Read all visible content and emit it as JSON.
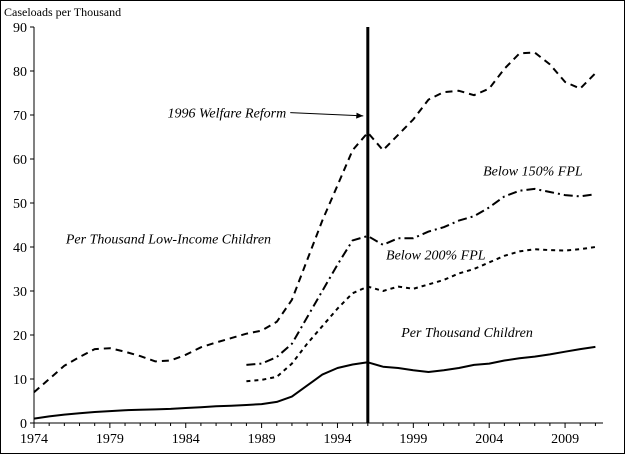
{
  "chart_data": {
    "type": "line",
    "title": "",
    "ylabel": "Caseloads per Thousand",
    "xlabel": "",
    "xlim": [
      1974,
      2011.5
    ],
    "ylim": [
      0,
      90
    ],
    "xticks": [
      1974,
      1979,
      1984,
      1989,
      1994,
      1999,
      2004,
      2009
    ],
    "yticks": [
      0,
      10,
      20,
      30,
      40,
      50,
      60,
      70,
      80,
      90
    ],
    "grid": false,
    "series": [
      {
        "name": "Per Thousand Low-Income Children",
        "style": "dash",
        "x": [
          1974,
          1975,
          1976,
          1977,
          1978,
          1979,
          1980,
          1981,
          1982,
          1983,
          1984,
          1985,
          1986,
          1987,
          1988,
          1989,
          1990,
          1991,
          1992,
          1993,
          1994,
          1995,
          1996,
          1997,
          1998,
          1999,
          2000,
          2001,
          2002,
          2003,
          2004,
          2005,
          2006,
          2007,
          2008,
          2009,
          2010,
          2011
        ],
        "values": [
          7,
          10,
          13,
          15,
          16.8,
          17,
          16.2,
          15.2,
          14,
          14.2,
          15.5,
          17.2,
          18.3,
          19.3,
          20.3,
          21,
          23,
          28,
          37,
          46,
          54,
          62,
          66,
          62,
          65.5,
          69,
          73.5,
          75.2,
          75.5,
          74.5,
          76,
          80.5,
          84,
          84.2,
          81.5,
          77.5,
          76,
          79.5
        ]
      },
      {
        "name": "Below 150% FPL",
        "style": "dashdot",
        "x": [
          1988,
          1989,
          1990,
          1991,
          1992,
          1993,
          1994,
          1995,
          1996,
          1997,
          1998,
          1999,
          2000,
          2001,
          2002,
          2003,
          2004,
          2005,
          2006,
          2007,
          2008,
          2009,
          2010,
          2011
        ],
        "values": [
          13.2,
          13.5,
          15,
          18,
          24,
          30,
          36,
          41.5,
          42.5,
          40.5,
          42,
          42,
          43.5,
          44.5,
          46,
          47,
          49,
          51.5,
          52.8,
          53.2,
          52.5,
          51.8,
          51.5,
          52
        ]
      },
      {
        "name": "Below 200% FPL",
        "style": "shortdash",
        "x": [
          1988,
          1989,
          1990,
          1991,
          1992,
          1993,
          1994,
          1995,
          1996,
          1997,
          1998,
          1999,
          2000,
          2001,
          2002,
          2003,
          2004,
          2005,
          2006,
          2007,
          2008,
          2009,
          2010,
          2011
        ],
        "values": [
          9.5,
          9.8,
          10.5,
          13.5,
          18,
          22,
          26,
          29.5,
          31,
          30,
          31,
          30.5,
          31.5,
          32.5,
          34,
          35,
          36.5,
          38,
          39,
          39.5,
          39.3,
          39.2,
          39.5,
          40
        ]
      },
      {
        "name": "Per Thousand Children",
        "style": "solid",
        "x": [
          1974,
          1975,
          1976,
          1977,
          1978,
          1979,
          1980,
          1981,
          1982,
          1983,
          1984,
          1985,
          1986,
          1987,
          1988,
          1989,
          1990,
          1991,
          1992,
          1993,
          1994,
          1995,
          1996,
          1997,
          1998,
          1999,
          2000,
          2001,
          2002,
          2003,
          2004,
          2005,
          2006,
          2007,
          2008,
          2009,
          2010,
          2011
        ],
        "values": [
          1,
          1.5,
          1.9,
          2.2,
          2.5,
          2.7,
          2.9,
          3.0,
          3.1,
          3.2,
          3.4,
          3.6,
          3.8,
          3.9,
          4.1,
          4.3,
          4.8,
          6,
          8.5,
          11,
          12.5,
          13.3,
          13.8,
          12.8,
          12.5,
          12,
          11.6,
          12,
          12.5,
          13.2,
          13.5,
          14.2,
          14.7,
          15.1,
          15.6,
          16.2,
          16.8,
          17.3
        ]
      }
    ],
    "reference_line": {
      "x": 1996
    },
    "annotations": [
      {
        "key": "reform",
        "text": "1996 Welfare Reform",
        "x": 1982.8,
        "y": 69.4,
        "arrow_to": [
          1995.7,
          69.8
        ]
      },
      {
        "key": "fpl150",
        "text": "Below 150% FPL",
        "x": 2003.6,
        "y": 56.3
      },
      {
        "key": "low_income",
        "text": "Per Thousand Low-Income Children",
        "x": 1976.1,
        "y": 40.8
      },
      {
        "key": "fpl200",
        "text": "Below 200% FPL",
        "x": 1997.2,
        "y": 37.2
      },
      {
        "key": "children",
        "text": "Per Thousand Children",
        "x": 1998.2,
        "y": 19.6
      }
    ]
  }
}
